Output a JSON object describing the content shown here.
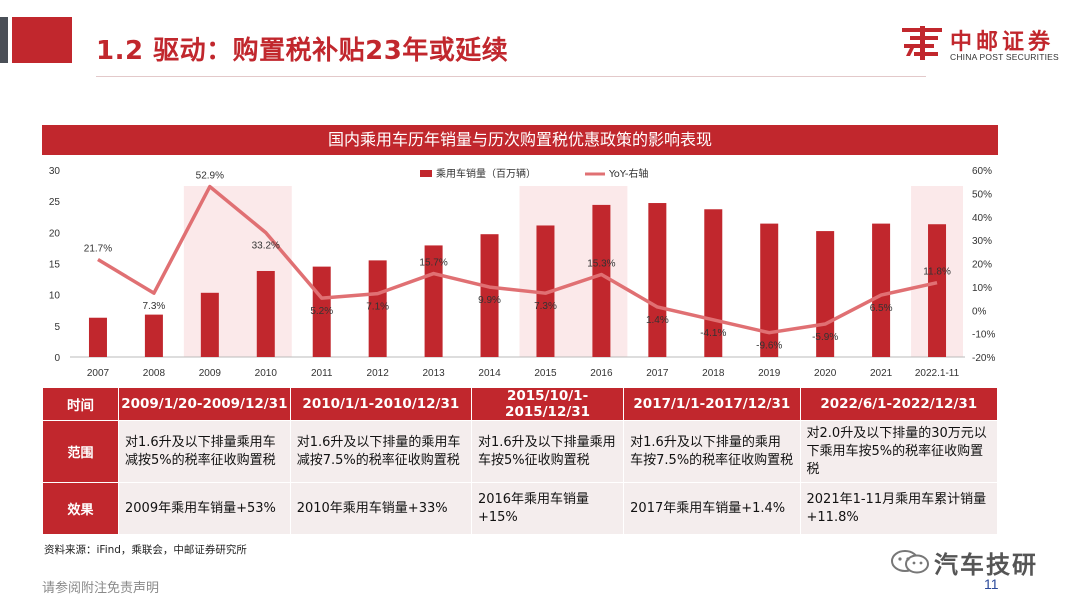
{
  "page": {
    "title": "1.2 驱动：购置税补贴23年或延续",
    "disclaimer": "请参阅附注免责声明",
    "page_number": "11",
    "source": "资料来源：iFind，乘联会，中邮证券研究所",
    "watermark": "汽车技研"
  },
  "logo": {
    "cn": "中邮证券",
    "en": "CHINA POST SECURITIES"
  },
  "colors": {
    "brand_red": "#c1272d",
    "line_pink": "#e07073",
    "shade": "#fbe9ea",
    "cell_bg": "#f4eded"
  },
  "chart_data": {
    "type": "bar",
    "title": "国内乘用车历年销量与历次购置税优惠政策的影响表现",
    "categories": [
      "2007",
      "2008",
      "2009",
      "2010",
      "2011",
      "2012",
      "2013",
      "2014",
      "2015",
      "2016",
      "2017",
      "2018",
      "2019",
      "2020",
      "2021",
      "2022.1-11"
    ],
    "series": [
      {
        "name": "乘用车销量（百万辆）",
        "type": "bar",
        "axis": "left",
        "values": [
          6.3,
          6.8,
          10.3,
          13.8,
          14.5,
          15.5,
          17.9,
          19.7,
          21.1,
          24.4,
          24.7,
          23.7,
          21.4,
          20.2,
          21.4,
          21.3
        ]
      },
      {
        "name": "YoY-右轴",
        "type": "line",
        "axis": "right",
        "values": [
          21.7,
          7.3,
          52.9,
          33.2,
          5.2,
          7.1,
          15.7,
          9.9,
          7.3,
          15.3,
          1.4,
          -4.1,
          -9.6,
          -5.9,
          6.5,
          11.8
        ],
        "labels": [
          "21.7%",
          "7.3%",
          "52.9%",
          "33.2%",
          "5.2%",
          "7.1%",
          "15.7%",
          "9.9%",
          "7.3%",
          "15.3%",
          "1.4%",
          "-4.1%",
          "-9.6%",
          "-5.9%",
          "6.5%",
          "11.8%"
        ]
      }
    ],
    "y_left": {
      "min": 0,
      "max": 30,
      "ticks": [
        "0",
        "5",
        "10",
        "15",
        "20",
        "25",
        "30"
      ]
    },
    "y_right": {
      "min": -20,
      "max": 60,
      "ticks": [
        "-20%",
        "-10%",
        "0%",
        "10%",
        "20%",
        "30%",
        "40%",
        "50%",
        "60%"
      ]
    },
    "highlight_periods": [
      [
        2,
        3
      ],
      [
        8,
        9
      ],
      [
        15,
        15
      ]
    ],
    "legend": "top-center"
  },
  "table": {
    "headers": [
      "时间",
      "2009/1/20-2009/12/31",
      "2010/1/1-2010/12/31",
      "2015/10/1-2015/12/31",
      "2017/1/1-2017/12/31",
      "2022/6/1-2022/12/31"
    ],
    "rows": [
      {
        "label": "范围",
        "cells": [
          "对1.6升及以下排量乘用车减按5%的税率征收购置税",
          "对1.6升及以下排量的乘用车减按7.5%的税率征收购置税",
          "对1.6升及以下排量乘用车按5%征收购置税",
          "对1.6升及以下排量的乘用车按7.5%的税率征收购置税",
          "对2.0升及以下排量的30万元以下乘用车按5%的税率征收购置税"
        ]
      },
      {
        "label": "效果",
        "cells": [
          "2009年乘用车销量+53%",
          "2010年乘用车销量+33%",
          "2016年乘用车销量+15%",
          "2017年乘用车销量+1.4%",
          "2021年1-11月乘用车累计销量+11.8%"
        ]
      }
    ]
  }
}
